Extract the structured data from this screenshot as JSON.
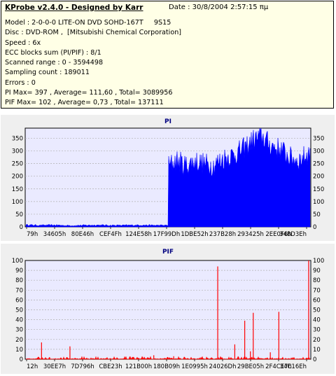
{
  "info": {
    "title": "KProbe v2.4.0 - Designed by Karr",
    "date": "Date : 30/8/2004 2:57:15 πμ",
    "lines": [
      "Model : 2-0-0-0 LITE-ON DVD SOHD-167T     9S15",
      "Disc : DVD-ROM ,  [Mitsubishi Chemical Corporation]",
      "Speed : 6x",
      "ECC blocks sum (PI/PIF) : 8/1",
      "Scanned range : 0 - 3594498",
      "Sampling count : 189011",
      "Errors : 0",
      "PI Max= 397 , Average= 111,60 , Total= 3089956",
      "PIF Max= 102 , Average= 0,73 , Total= 137111"
    ]
  },
  "chart_data": [
    {
      "type": "area",
      "title": "PI",
      "xlabel": "",
      "ylabel": "",
      "ylim": [
        0,
        390
      ],
      "yticks": [
        0,
        50,
        100,
        150,
        200,
        250,
        300,
        350
      ],
      "x_tick_labels": [
        "79h",
        "34605h",
        "80E46h",
        "CEF4Fh",
        "124E58h",
        "17F99Dh",
        "1DBE52h",
        "237B28h",
        "293425h",
        "2EE0F6h",
        "348D3Eh"
      ],
      "grid": true,
      "colors": {
        "fill": "#0000ff",
        "background": "#eaeaff",
        "grid": "#b0b0b0"
      },
      "profile": {
        "x": [
          0,
          0.05,
          0.1,
          0.15,
          0.2,
          0.25,
          0.3,
          0.35,
          0.4,
          0.45,
          0.5,
          0.5,
          0.53,
          0.56,
          0.6,
          0.63,
          0.66,
          0.7,
          0.73,
          0.76,
          0.8,
          0.83,
          0.86,
          0.9,
          0.93,
          0.96,
          1.0
        ],
        "values": [
          8,
          6,
          7,
          5,
          6,
          7,
          6,
          6,
          7,
          6,
          6,
          225,
          250,
          230,
          245,
          235,
          230,
          260,
          270,
          290,
          330,
          345,
          310,
          290,
          260,
          250,
          280
        ]
      }
    },
    {
      "type": "bar",
      "title": "PIF",
      "xlabel": "",
      "ylabel": "",
      "ylim": [
        0,
        100
      ],
      "yticks": [
        0,
        10,
        20,
        30,
        40,
        50,
        60,
        70,
        80,
        90,
        100
      ],
      "x_tick_labels": [
        "12h",
        "30EE7h",
        "7D796h",
        "CBE23h",
        "121B00h",
        "180B09h",
        "1E0995h",
        "24026Dh",
        "29BE05h",
        "2F4CE7h",
        "34C16Eh"
      ],
      "grid": true,
      "colors": {
        "fill": "#ff0000",
        "background": "#eaeaff",
        "grid": "#b0b0b0"
      },
      "spikes": {
        "x": [
          0.055,
          0.155,
          0.45,
          0.52,
          0.675,
          0.735,
          0.77,
          0.79,
          0.8,
          0.86,
          0.89,
          0.995
        ],
        "values": [
          17,
          13,
          4,
          3,
          94,
          15,
          39,
          8,
          47,
          7,
          48,
          100
        ]
      },
      "baseline_max": 3
    }
  ]
}
